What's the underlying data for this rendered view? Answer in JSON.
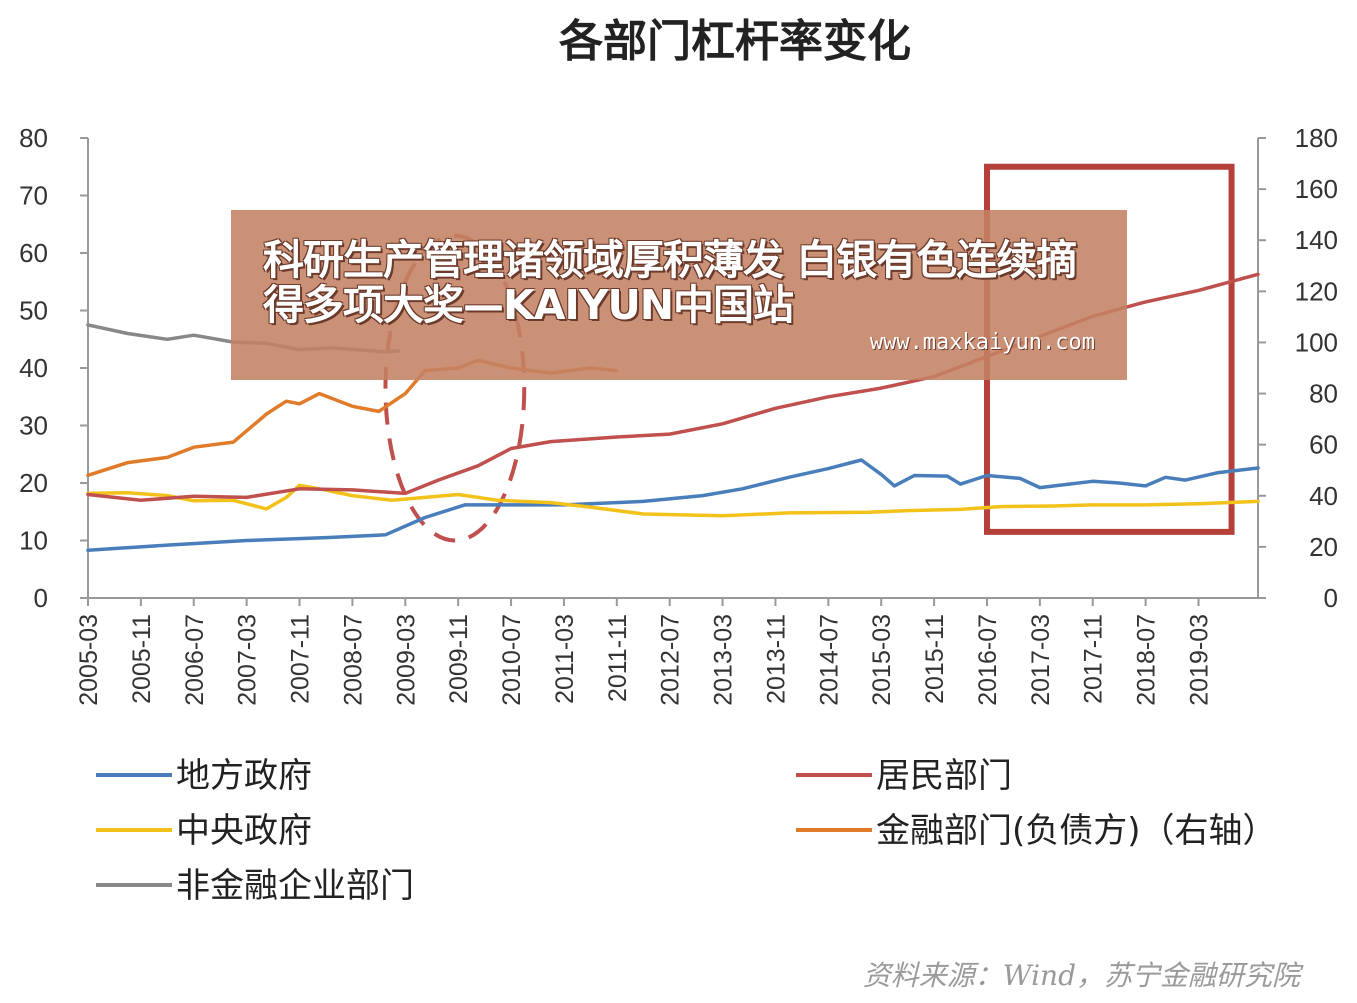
{
  "chart_data": {
    "type": "line",
    "title": "各部门杠杆率变化",
    "left_axis": {
      "min": 0,
      "max": 80,
      "ticks": [
        0,
        10,
        20,
        30,
        40,
        50,
        60,
        70,
        80
      ]
    },
    "right_axis": {
      "min": 0,
      "max": 180,
      "ticks": [
        0,
        20,
        40,
        60,
        80,
        100,
        120,
        140,
        160,
        180
      ]
    },
    "x_tick_labels": [
      "2005-03",
      "2005-11",
      "2006-07",
      "2007-03",
      "2007-11",
      "2008-07",
      "2009-03",
      "2009-11",
      "2010-07",
      "2011-03",
      "2011-11",
      "2012-07",
      "2013-03",
      "2013-11",
      "2014-07",
      "2015-03",
      "2015-11",
      "2016-07",
      "2017-03",
      "2017-11",
      "2018-07",
      "2019-03"
    ],
    "x_start": "2005-03",
    "x_end": "2019-12",
    "grid": false,
    "legend_position": "bottom",
    "series": [
      {
        "name": "地方政府",
        "axis": "left",
        "color": "#4a7ebb",
        "points": [
          [
            "2005-03",
            8.3
          ],
          [
            "2006-03",
            9.2
          ],
          [
            "2007-03",
            10.0
          ],
          [
            "2008-03",
            10.5
          ],
          [
            "2008-12",
            11.0
          ],
          [
            "2009-06",
            14.0
          ],
          [
            "2009-12",
            16.2
          ],
          [
            "2010-06",
            16.2
          ],
          [
            "2011-03",
            16.2
          ],
          [
            "2012-03",
            16.8
          ],
          [
            "2012-12",
            17.8
          ],
          [
            "2013-06",
            19.0
          ],
          [
            "2014-01",
            21.0
          ],
          [
            "2014-07",
            22.5
          ],
          [
            "2014-12",
            24.0
          ],
          [
            "2015-03",
            21.5
          ],
          [
            "2015-05",
            19.5
          ],
          [
            "2015-08",
            21.3
          ],
          [
            "2016-01",
            21.2
          ],
          [
            "2016-03",
            19.8
          ],
          [
            "2016-07",
            21.3
          ],
          [
            "2016-12",
            20.8
          ],
          [
            "2017-03",
            19.2
          ],
          [
            "2017-06",
            19.6
          ],
          [
            "2017-11",
            20.3
          ],
          [
            "2018-03",
            20.0
          ],
          [
            "2018-07",
            19.5
          ],
          [
            "2018-10",
            21.0
          ],
          [
            "2019-01",
            20.5
          ],
          [
            "2019-06",
            21.8
          ],
          [
            "2019-12",
            22.6
          ]
        ]
      },
      {
        "name": "中央政府",
        "axis": "left",
        "color": "#f2c21b",
        "points": [
          [
            "2005-03",
            18.2
          ],
          [
            "2005-09",
            18.3
          ],
          [
            "2006-03",
            17.8
          ],
          [
            "2006-07",
            16.9
          ],
          [
            "2007-01",
            17.0
          ],
          [
            "2007-06",
            15.5
          ],
          [
            "2007-09",
            17.5
          ],
          [
            "2007-11",
            19.6
          ],
          [
            "2008-02",
            19.0
          ],
          [
            "2008-07",
            17.8
          ],
          [
            "2009-01",
            17.0
          ],
          [
            "2009-06",
            17.5
          ],
          [
            "2009-11",
            18.0
          ],
          [
            "2010-05",
            17.0
          ],
          [
            "2011-01",
            16.6
          ],
          [
            "2011-07",
            15.8
          ],
          [
            "2012-03",
            14.6
          ],
          [
            "2013-03",
            14.3
          ],
          [
            "2014-01",
            14.8
          ],
          [
            "2015-01",
            14.9
          ],
          [
            "2015-07",
            15.2
          ],
          [
            "2016-03",
            15.4
          ],
          [
            "2016-09",
            15.9
          ],
          [
            "2017-05",
            16.0
          ],
          [
            "2017-11",
            16.2
          ],
          [
            "2018-07",
            16.2
          ],
          [
            "2019-03",
            16.4
          ],
          [
            "2019-12",
            16.8
          ]
        ]
      },
      {
        "name": "非金融企业部门",
        "axis": "left",
        "color": "#888888",
        "points": [
          [
            "2005-03",
            47.5
          ],
          [
            "2005-09",
            46.0
          ],
          [
            "2006-03",
            45.0
          ],
          [
            "2006-07",
            45.7
          ],
          [
            "2007-01",
            44.5
          ],
          [
            "2007-06",
            44.3
          ],
          [
            "2007-11",
            43.2
          ],
          [
            "2008-04",
            43.5
          ],
          [
            "2008-12",
            42.8
          ],
          [
            "2009-02",
            43.0
          ]
        ]
      },
      {
        "name": "居民部门",
        "axis": "left",
        "color": "#c0504d",
        "points": [
          [
            "2005-03",
            18.0
          ],
          [
            "2005-11",
            17.0
          ],
          [
            "2006-07",
            17.7
          ],
          [
            "2007-03",
            17.5
          ],
          [
            "2007-11",
            19.0
          ],
          [
            "2008-07",
            18.8
          ],
          [
            "2009-03",
            18.2
          ],
          [
            "2009-08",
            20.5
          ],
          [
            "2010-02",
            23.0
          ],
          [
            "2010-07",
            26.0
          ],
          [
            "2011-01",
            27.2
          ],
          [
            "2011-11",
            28.0
          ],
          [
            "2012-07",
            28.5
          ],
          [
            "2013-03",
            30.3
          ],
          [
            "2013-11",
            33.0
          ],
          [
            "2014-07",
            35.0
          ],
          [
            "2015-03",
            36.5
          ],
          [
            "2015-11",
            38.5
          ],
          [
            "2016-07",
            42.0
          ],
          [
            "2017-03",
            45.5
          ],
          [
            "2017-11",
            49.0
          ],
          [
            "2018-07",
            51.5
          ],
          [
            "2019-03",
            53.5
          ],
          [
            "2019-12",
            56.3
          ]
        ]
      },
      {
        "name": "金融部门(负债方)（右轴）",
        "axis": "right",
        "color": "#e07b2a",
        "points": [
          [
            "2005-03",
            48.0
          ],
          [
            "2005-09",
            53.0
          ],
          [
            "2006-03",
            55.0
          ],
          [
            "2006-07",
            59.0
          ],
          [
            "2007-01",
            61.0
          ],
          [
            "2007-06",
            72.0
          ],
          [
            "2007-09",
            77.0
          ],
          [
            "2007-11",
            76.0
          ],
          [
            "2008-02",
            80.0
          ],
          [
            "2008-07",
            75.0
          ],
          [
            "2008-11",
            73.0
          ],
          [
            "2009-03",
            80.0
          ],
          [
            "2009-06",
            89.0
          ],
          [
            "2009-11",
            90.0
          ],
          [
            "2010-02",
            93.0
          ],
          [
            "2010-07",
            90.0
          ],
          [
            "2011-01",
            88.0
          ],
          [
            "2011-07",
            90.0
          ],
          [
            "2011-11",
            89.0
          ]
        ]
      }
    ],
    "annotations": [
      {
        "kind": "dashed-ellipse",
        "color": "#c0504d",
        "x_from": "2008-12",
        "x_to": "2010-09",
        "y_from": 10,
        "y_to": 63
      },
      {
        "kind": "box",
        "color": "#b5403a",
        "x_from": "2016-07",
        "x_to": "2019-08",
        "y_from": 11.5,
        "y_to": 75
      }
    ]
  },
  "banner": {
    "text": "科研生产管理诸领域厚积薄发 白银有色连续摘得多项大奖—KAIYUN中国站",
    "url": "www.maxkaiyun.com"
  },
  "source": "资料来源：Wind，苏宁金融研究院"
}
